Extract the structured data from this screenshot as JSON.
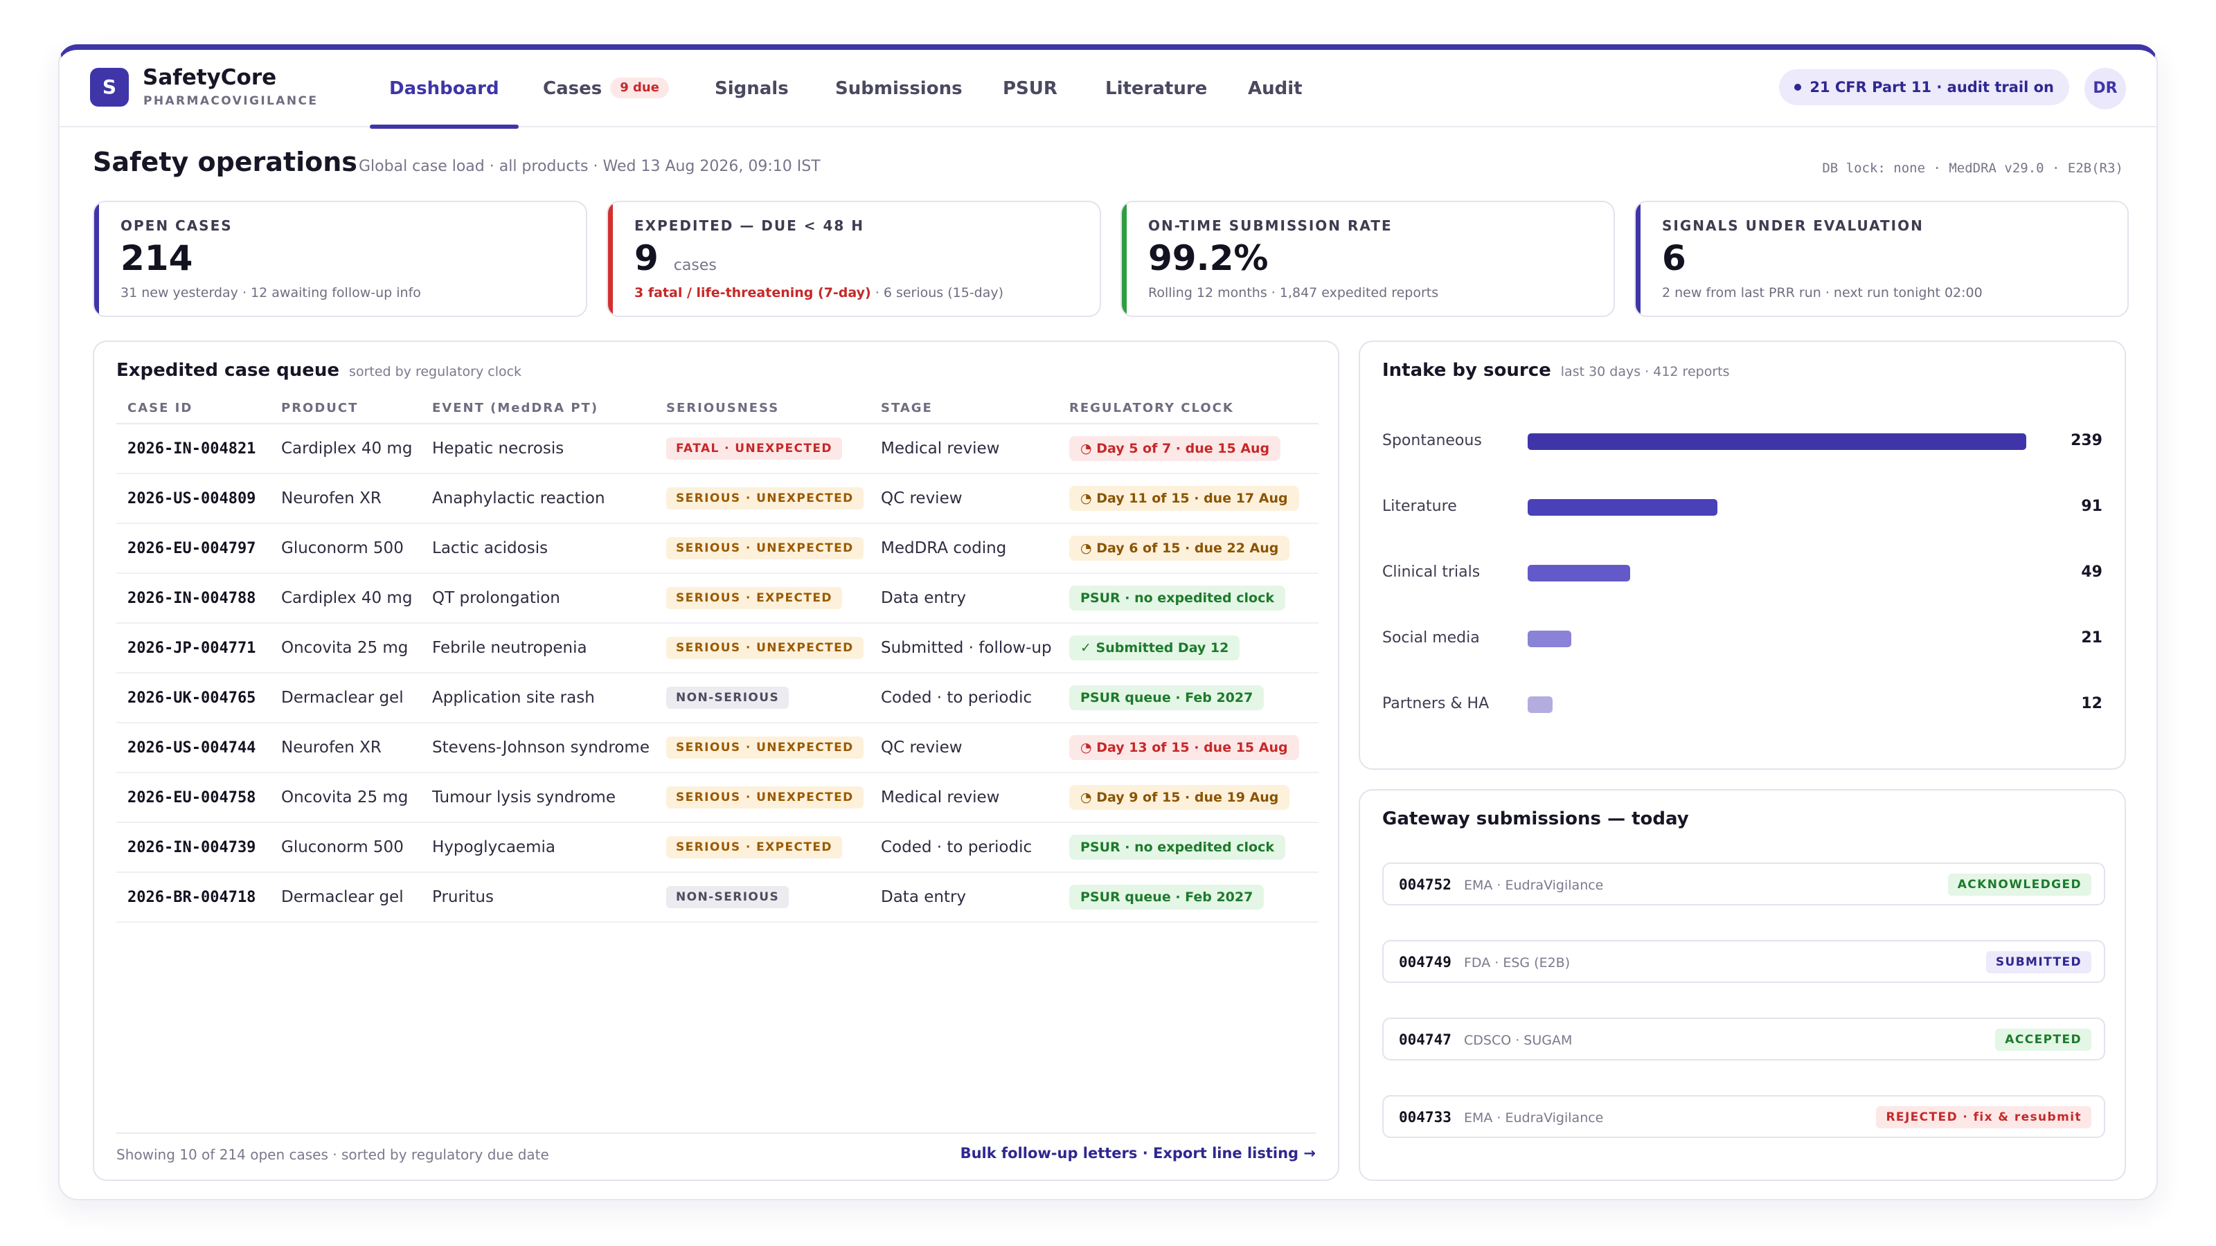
{
  "brand": {
    "logo_letter": "S",
    "name": "SafetyCore",
    "subtitle": "PHARMACOVIGILANCE"
  },
  "nav": {
    "tabs": [
      {
        "label": "Dashboard",
        "active": true
      },
      {
        "label": "Cases",
        "badge": "9 due"
      },
      {
        "label": "Signals"
      },
      {
        "label": "Submissions"
      },
      {
        "label": "PSUR"
      },
      {
        "label": "Literature"
      },
      {
        "label": "Audit"
      }
    ],
    "audit_pill": "21 CFR Part 11 · audit trail on",
    "avatar": "DR"
  },
  "header": {
    "title": "Safety operations",
    "subtitle": "Global case load · all products · Wed 13 Aug 2026, 09:10 IST",
    "meta": "DB lock: none · MedDRA v29.0 · E2B(R3)"
  },
  "kpis": [
    {
      "label": "OPEN CASES",
      "value": "214",
      "unit": "",
      "foot_alert": "",
      "foot": "31 new yesterday · 12 awaiting follow-up info",
      "accent": "#3f35a8"
    },
    {
      "label": "EXPEDITED — DUE < 48 H",
      "value": "9",
      "unit": "cases",
      "foot_alert": "3 fatal / life-threatening (7-day)",
      "foot": " · 6 serious (15-day)",
      "accent": "#d32f2f"
    },
    {
      "label": "ON-TIME SUBMISSION RATE",
      "value": "99.2%",
      "unit": "",
      "foot_alert": "",
      "foot": "Rolling 12 months · 1,847 expedited reports",
      "accent": "#2e9e3e"
    },
    {
      "label": "SIGNALS UNDER EVALUATION",
      "value": "6",
      "unit": "",
      "foot_alert": "",
      "foot": "2 new from last PRR run · next run tonight 02:00",
      "accent": "#3f35a8"
    }
  ],
  "queue": {
    "title": "Expedited case queue",
    "subtitle": "sorted by regulatory clock",
    "columns": [
      "CASE ID",
      "PRODUCT",
      "EVENT (MedDRA PT)",
      "SERIOUSNESS",
      "STAGE",
      "REGULATORY CLOCK"
    ],
    "rows": [
      {
        "id": "2026-IN-004821",
        "product": "Cardiplex 40 mg",
        "event": "Hepatic necrosis",
        "seriousness": "FATAL · UNEXPECTED",
        "sev": "fatal",
        "stage": "Medical review",
        "clock": "◔ Day 5 of 7 · due 15 Aug",
        "clock_type": "red"
      },
      {
        "id": "2026-US-004809",
        "product": "Neurofen XR",
        "event": "Anaphylactic reaction",
        "seriousness": "SERIOUS · UNEXPECTED",
        "sev": "serious",
        "stage": "QC review",
        "clock": "◔ Day 11 of 15 · due 17 Aug",
        "clock_type": "amber"
      },
      {
        "id": "2026-EU-004797",
        "product": "Gluconorm 500",
        "event": "Lactic acidosis",
        "seriousness": "SERIOUS · UNEXPECTED",
        "sev": "serious",
        "stage": "MedDRA coding",
        "clock": "◔ Day 6 of 15 · due 22 Aug",
        "clock_type": "amber"
      },
      {
        "id": "2026-IN-004788",
        "product": "Cardiplex 40 mg",
        "event": "QT prolongation",
        "seriousness": "SERIOUS · EXPECTED",
        "sev": "serious",
        "stage": "Data entry",
        "clock": "PSUR · no expedited clock",
        "clock_type": "green"
      },
      {
        "id": "2026-JP-004771",
        "product": "Oncovita 25 mg",
        "event": "Febrile neutropenia",
        "seriousness": "SERIOUS · UNEXPECTED",
        "sev": "serious",
        "stage": "Submitted · follow-up",
        "clock": "✓ Submitted Day 12",
        "clock_type": "green"
      },
      {
        "id": "2026-UK-004765",
        "product": "Dermaclear gel",
        "event": "Application site rash",
        "seriousness": "NON-SERIOUS",
        "sev": "nonser",
        "stage": "Coded · to periodic",
        "clock": "PSUR queue · Feb 2027",
        "clock_type": "green"
      },
      {
        "id": "2026-US-004744",
        "product": "Neurofen XR",
        "event": "Stevens-Johnson syndrome",
        "seriousness": "SERIOUS · UNEXPECTED",
        "sev": "serious",
        "stage": "QC review",
        "clock": "◔ Day 13 of 15 · due 15 Aug",
        "clock_type": "red"
      },
      {
        "id": "2026-EU-004758",
        "product": "Oncovita 25 mg",
        "event": "Tumour lysis syndrome",
        "seriousness": "SERIOUS · UNEXPECTED",
        "sev": "serious",
        "stage": "Medical review",
        "clock": "◔ Day 9 of 15 · due 19 Aug",
        "clock_type": "amber"
      },
      {
        "id": "2026-IN-004739",
        "product": "Gluconorm 500",
        "event": "Hypoglycaemia",
        "seriousness": "SERIOUS · EXPECTED",
        "sev": "serious",
        "stage": "Coded · to periodic",
        "clock": "PSUR · no expedited clock",
        "clock_type": "green"
      },
      {
        "id": "2026-BR-004718",
        "product": "Dermaclear gel",
        "event": "Pruritus",
        "seriousness": "NON-SERIOUS",
        "sev": "nonser",
        "stage": "Data entry",
        "clock": "PSUR queue · Feb 2027",
        "clock_type": "green"
      }
    ],
    "footer_left": "Showing 10 of 214 open cases · sorted by regulatory due date",
    "footer_right": "Bulk follow-up letters · Export line listing →"
  },
  "intake": {
    "title": "Intake by source",
    "subtitle": "last 30 days · 412 reports",
    "max": 239,
    "sources": [
      {
        "label": "Spontaneous",
        "value": 239,
        "color": "#3f35a8"
      },
      {
        "label": "Literature",
        "value": 91,
        "color": "#4a40b8"
      },
      {
        "label": "Clinical trials",
        "value": 49,
        "color": "#6359c8"
      },
      {
        "label": "Social media",
        "value": 21,
        "color": "#8a82d6"
      },
      {
        "label": "Partners & HA",
        "value": 12,
        "color": "#b3addf"
      }
    ]
  },
  "gateway": {
    "title": "Gateway submissions — today",
    "items": [
      {
        "id": "004752",
        "dest": "EMA · EudraVigilance",
        "status": "ACKNOWLEDGED",
        "type": "ack"
      },
      {
        "id": "004749",
        "dest": "FDA · ESG (E2B)",
        "status": "SUBMITTED",
        "type": "sub"
      },
      {
        "id": "004747",
        "dest": "CDSCO · SUGAM",
        "status": "ACCEPTED",
        "type": "acc"
      },
      {
        "id": "004733",
        "dest": "EMA · EudraVigilance",
        "status": "REJECTED · fix & resubmit",
        "type": "rej"
      }
    ]
  }
}
